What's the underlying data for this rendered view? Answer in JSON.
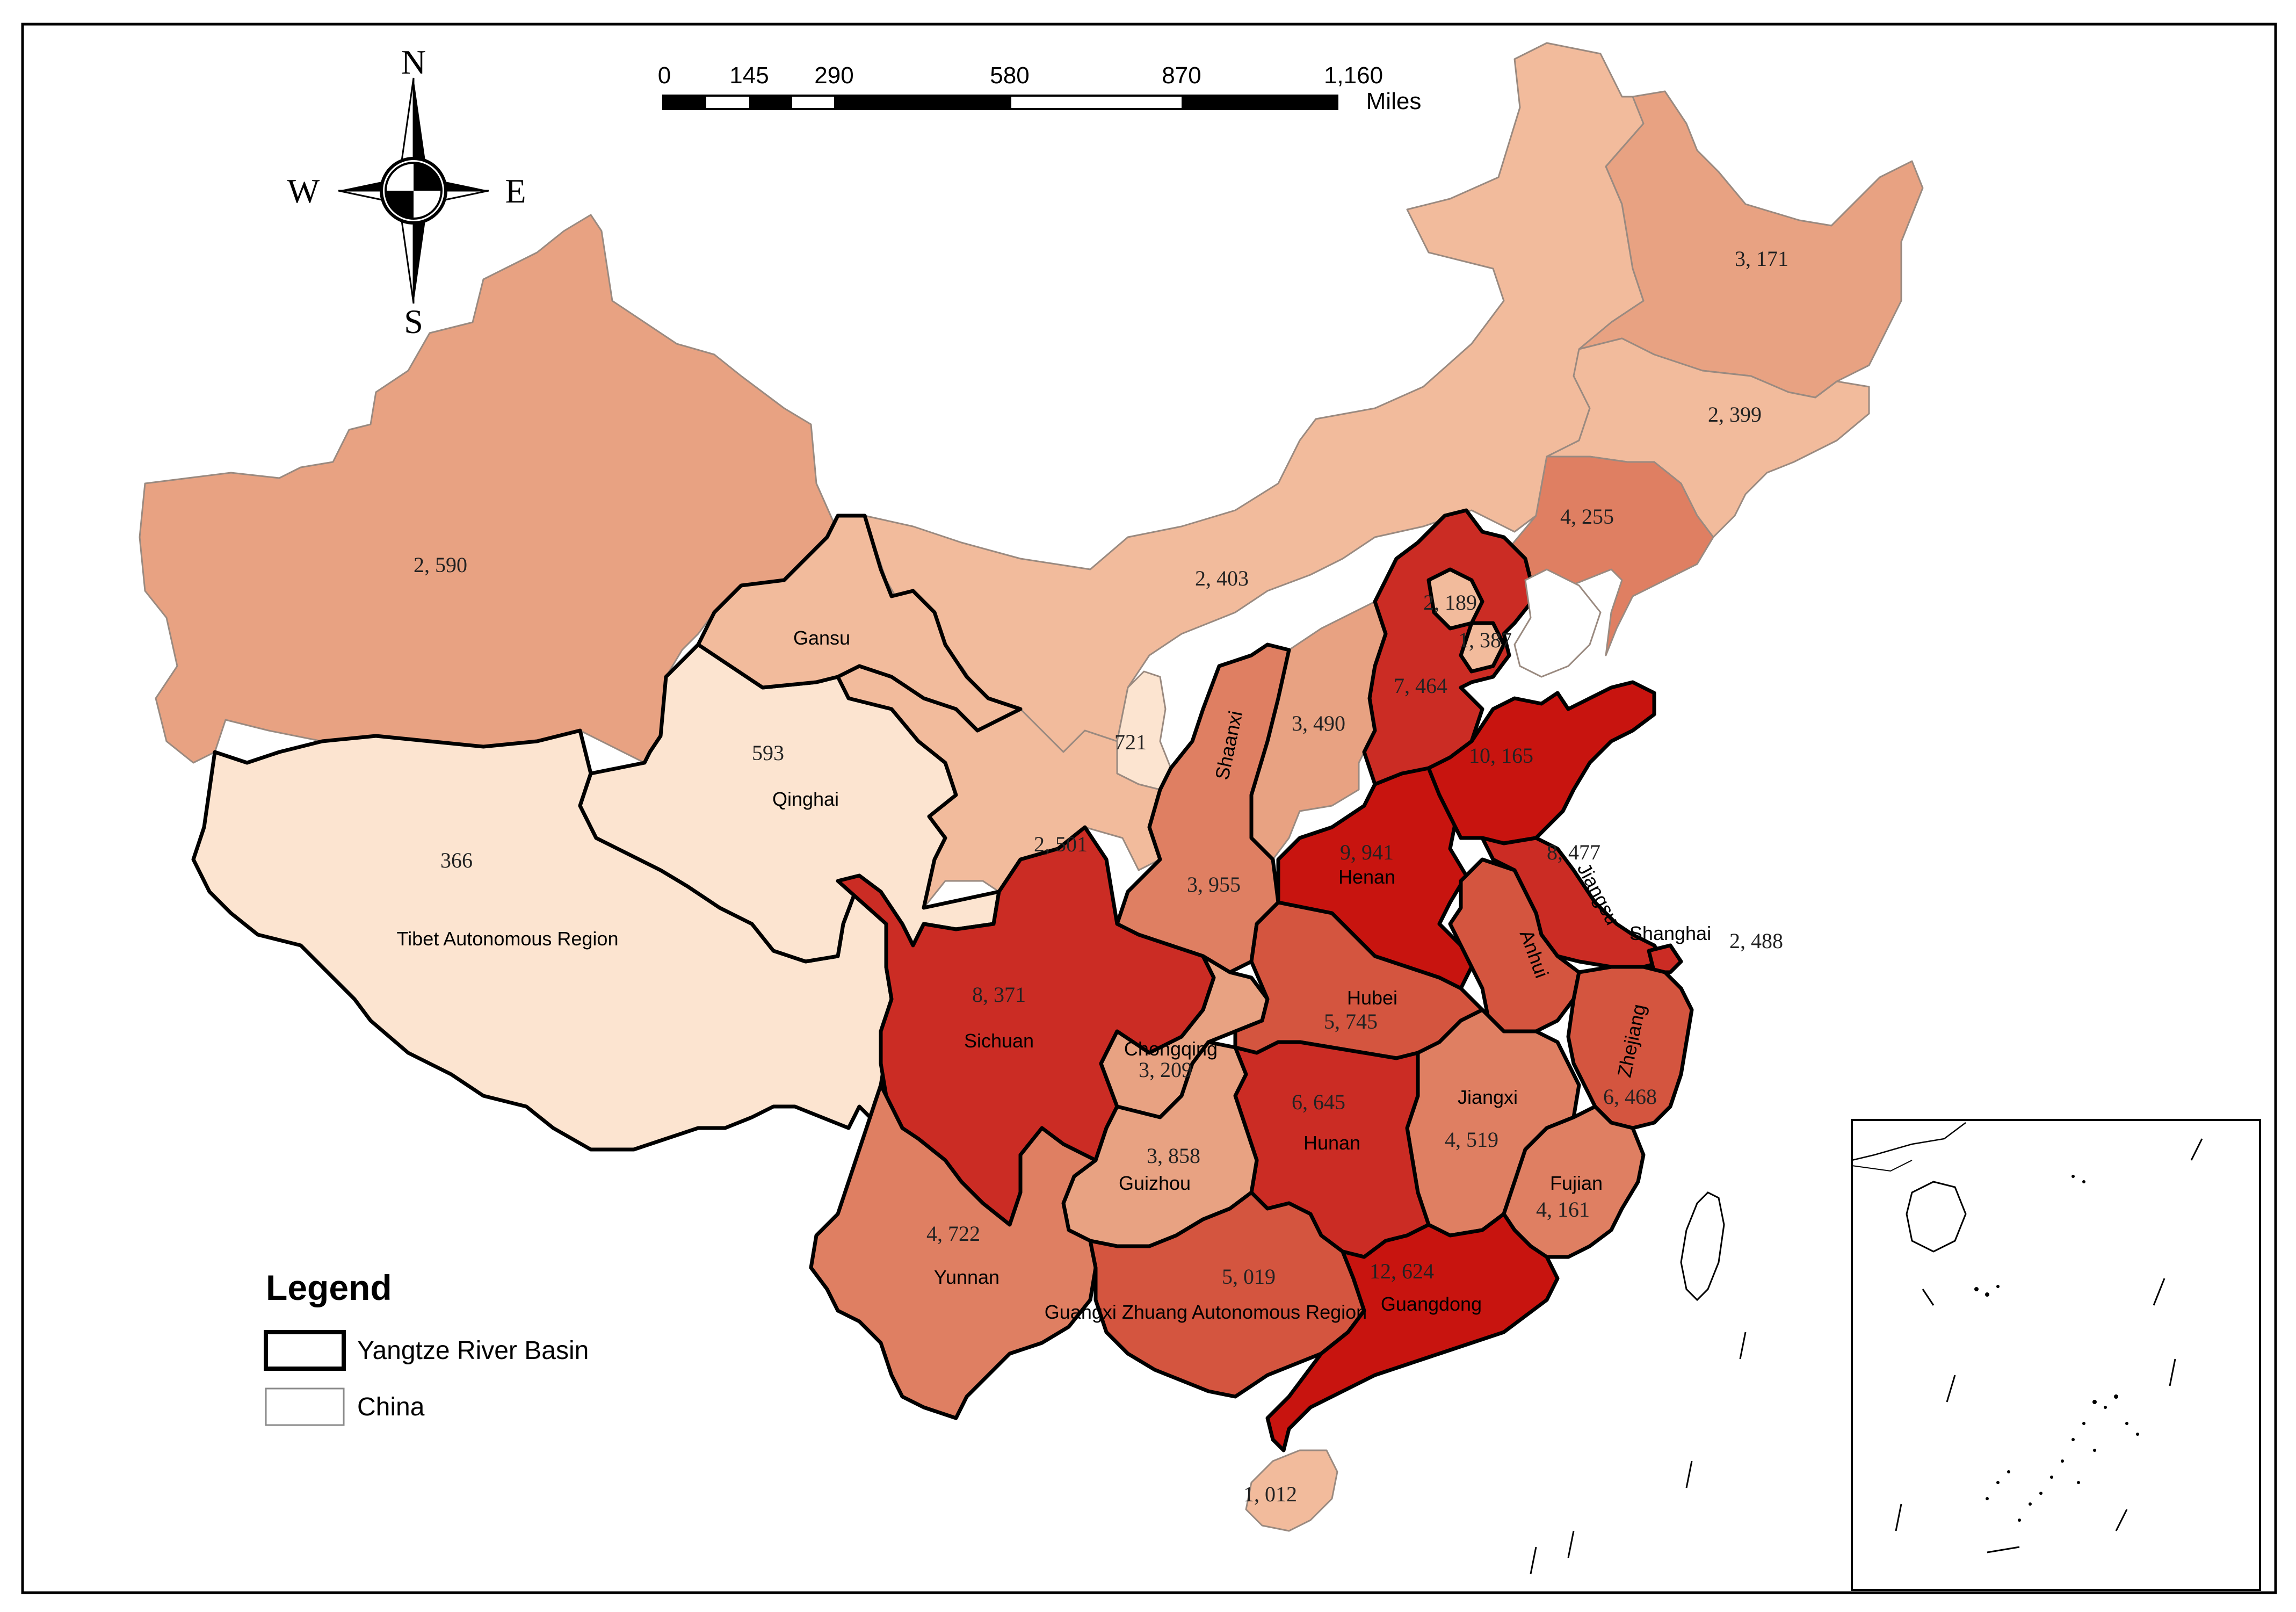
{
  "legend": {
    "title": "Legend",
    "items": [
      {
        "label": "Yangtze River Basin",
        "style": "thick-black-outline"
      },
      {
        "label": "China",
        "style": "thin-outline"
      }
    ]
  },
  "compass": {
    "north": "N",
    "south": "S",
    "east": "E",
    "west": "W"
  },
  "scale_bar": {
    "ticks": [
      "0",
      "145",
      "290",
      "580",
      "870",
      "1,160"
    ],
    "unit": "Miles"
  },
  "colors": {
    "class_1": "#fce4d0",
    "class_2": "#f2bb9c",
    "class_3": "#e8a282",
    "class_4": "#df7f62",
    "class_5": "#d4553f",
    "class_6": "#cb2c24",
    "class_7": "#c8140f",
    "border": "#9a8a80",
    "basin_border": "#000000"
  },
  "provinces": [
    {
      "id": "xinjiang",
      "name": "",
      "value": "2, 590"
    },
    {
      "id": "tibet",
      "name": "Tibet Autonomous Region",
      "value": "366"
    },
    {
      "id": "qinghai",
      "name": "Qinghai",
      "value": "593"
    },
    {
      "id": "gansu",
      "name": "Gansu",
      "value": ""
    },
    {
      "id": "inner-mongolia",
      "name": "",
      "value": "2, 403"
    },
    {
      "id": "heilongjiang",
      "name": "",
      "value": "3, 171"
    },
    {
      "id": "jilin",
      "name": "",
      "value": "2, 399"
    },
    {
      "id": "liaoning",
      "name": "",
      "value": "4, 255"
    },
    {
      "id": "beijing",
      "name": "",
      "value": "2, 189"
    },
    {
      "id": "tianjin",
      "name": "",
      "value": "1, 387"
    },
    {
      "id": "hebei",
      "name": "",
      "value": "7, 464"
    },
    {
      "id": "shanxi",
      "name": "",
      "value": "3, 490"
    },
    {
      "id": "ningxia",
      "name": "",
      "value": "721"
    },
    {
      "id": "shaanxi",
      "name": "Shaanxi",
      "value": "3, 955"
    },
    {
      "id": "gansu-south",
      "name": "",
      "value": "2, 501"
    },
    {
      "id": "shandong",
      "name": "",
      "value": "10, 165"
    },
    {
      "id": "henan",
      "name": "Henan",
      "value": "9, 941"
    },
    {
      "id": "jiangsu",
      "name": "Jiangsu",
      "value": "8, 477"
    },
    {
      "id": "shanghai",
      "name": "Shanghai",
      "value": "2, 488"
    },
    {
      "id": "anhui",
      "name": "Anhui",
      "value": ""
    },
    {
      "id": "hubei",
      "name": "Hubei",
      "value": "5, 745"
    },
    {
      "id": "sichuan",
      "name": "Sichuan",
      "value": "8, 371"
    },
    {
      "id": "chongqing",
      "name": "Chongqing",
      "value": "3, 209"
    },
    {
      "id": "zhejiang",
      "name": "Zhejiang",
      "value": "6, 468"
    },
    {
      "id": "jiangxi",
      "name": "Jiangxi",
      "value": "4, 519"
    },
    {
      "id": "hunan",
      "name": "Hunan",
      "value": "6, 645"
    },
    {
      "id": "guizhou",
      "name": "Guizhou",
      "value": "3, 858"
    },
    {
      "id": "fujian",
      "name": "Fujian",
      "value": "4, 161"
    },
    {
      "id": "yunnan",
      "name": "Yunnan",
      "value": "4, 722"
    },
    {
      "id": "guangxi",
      "name": "Guangxi Zhuang Autonomous Region",
      "value": "5, 019"
    },
    {
      "id": "guangdong",
      "name": "Guangdong",
      "value": "12, 624"
    },
    {
      "id": "hainan",
      "name": "",
      "value": "1, 012"
    }
  ]
}
